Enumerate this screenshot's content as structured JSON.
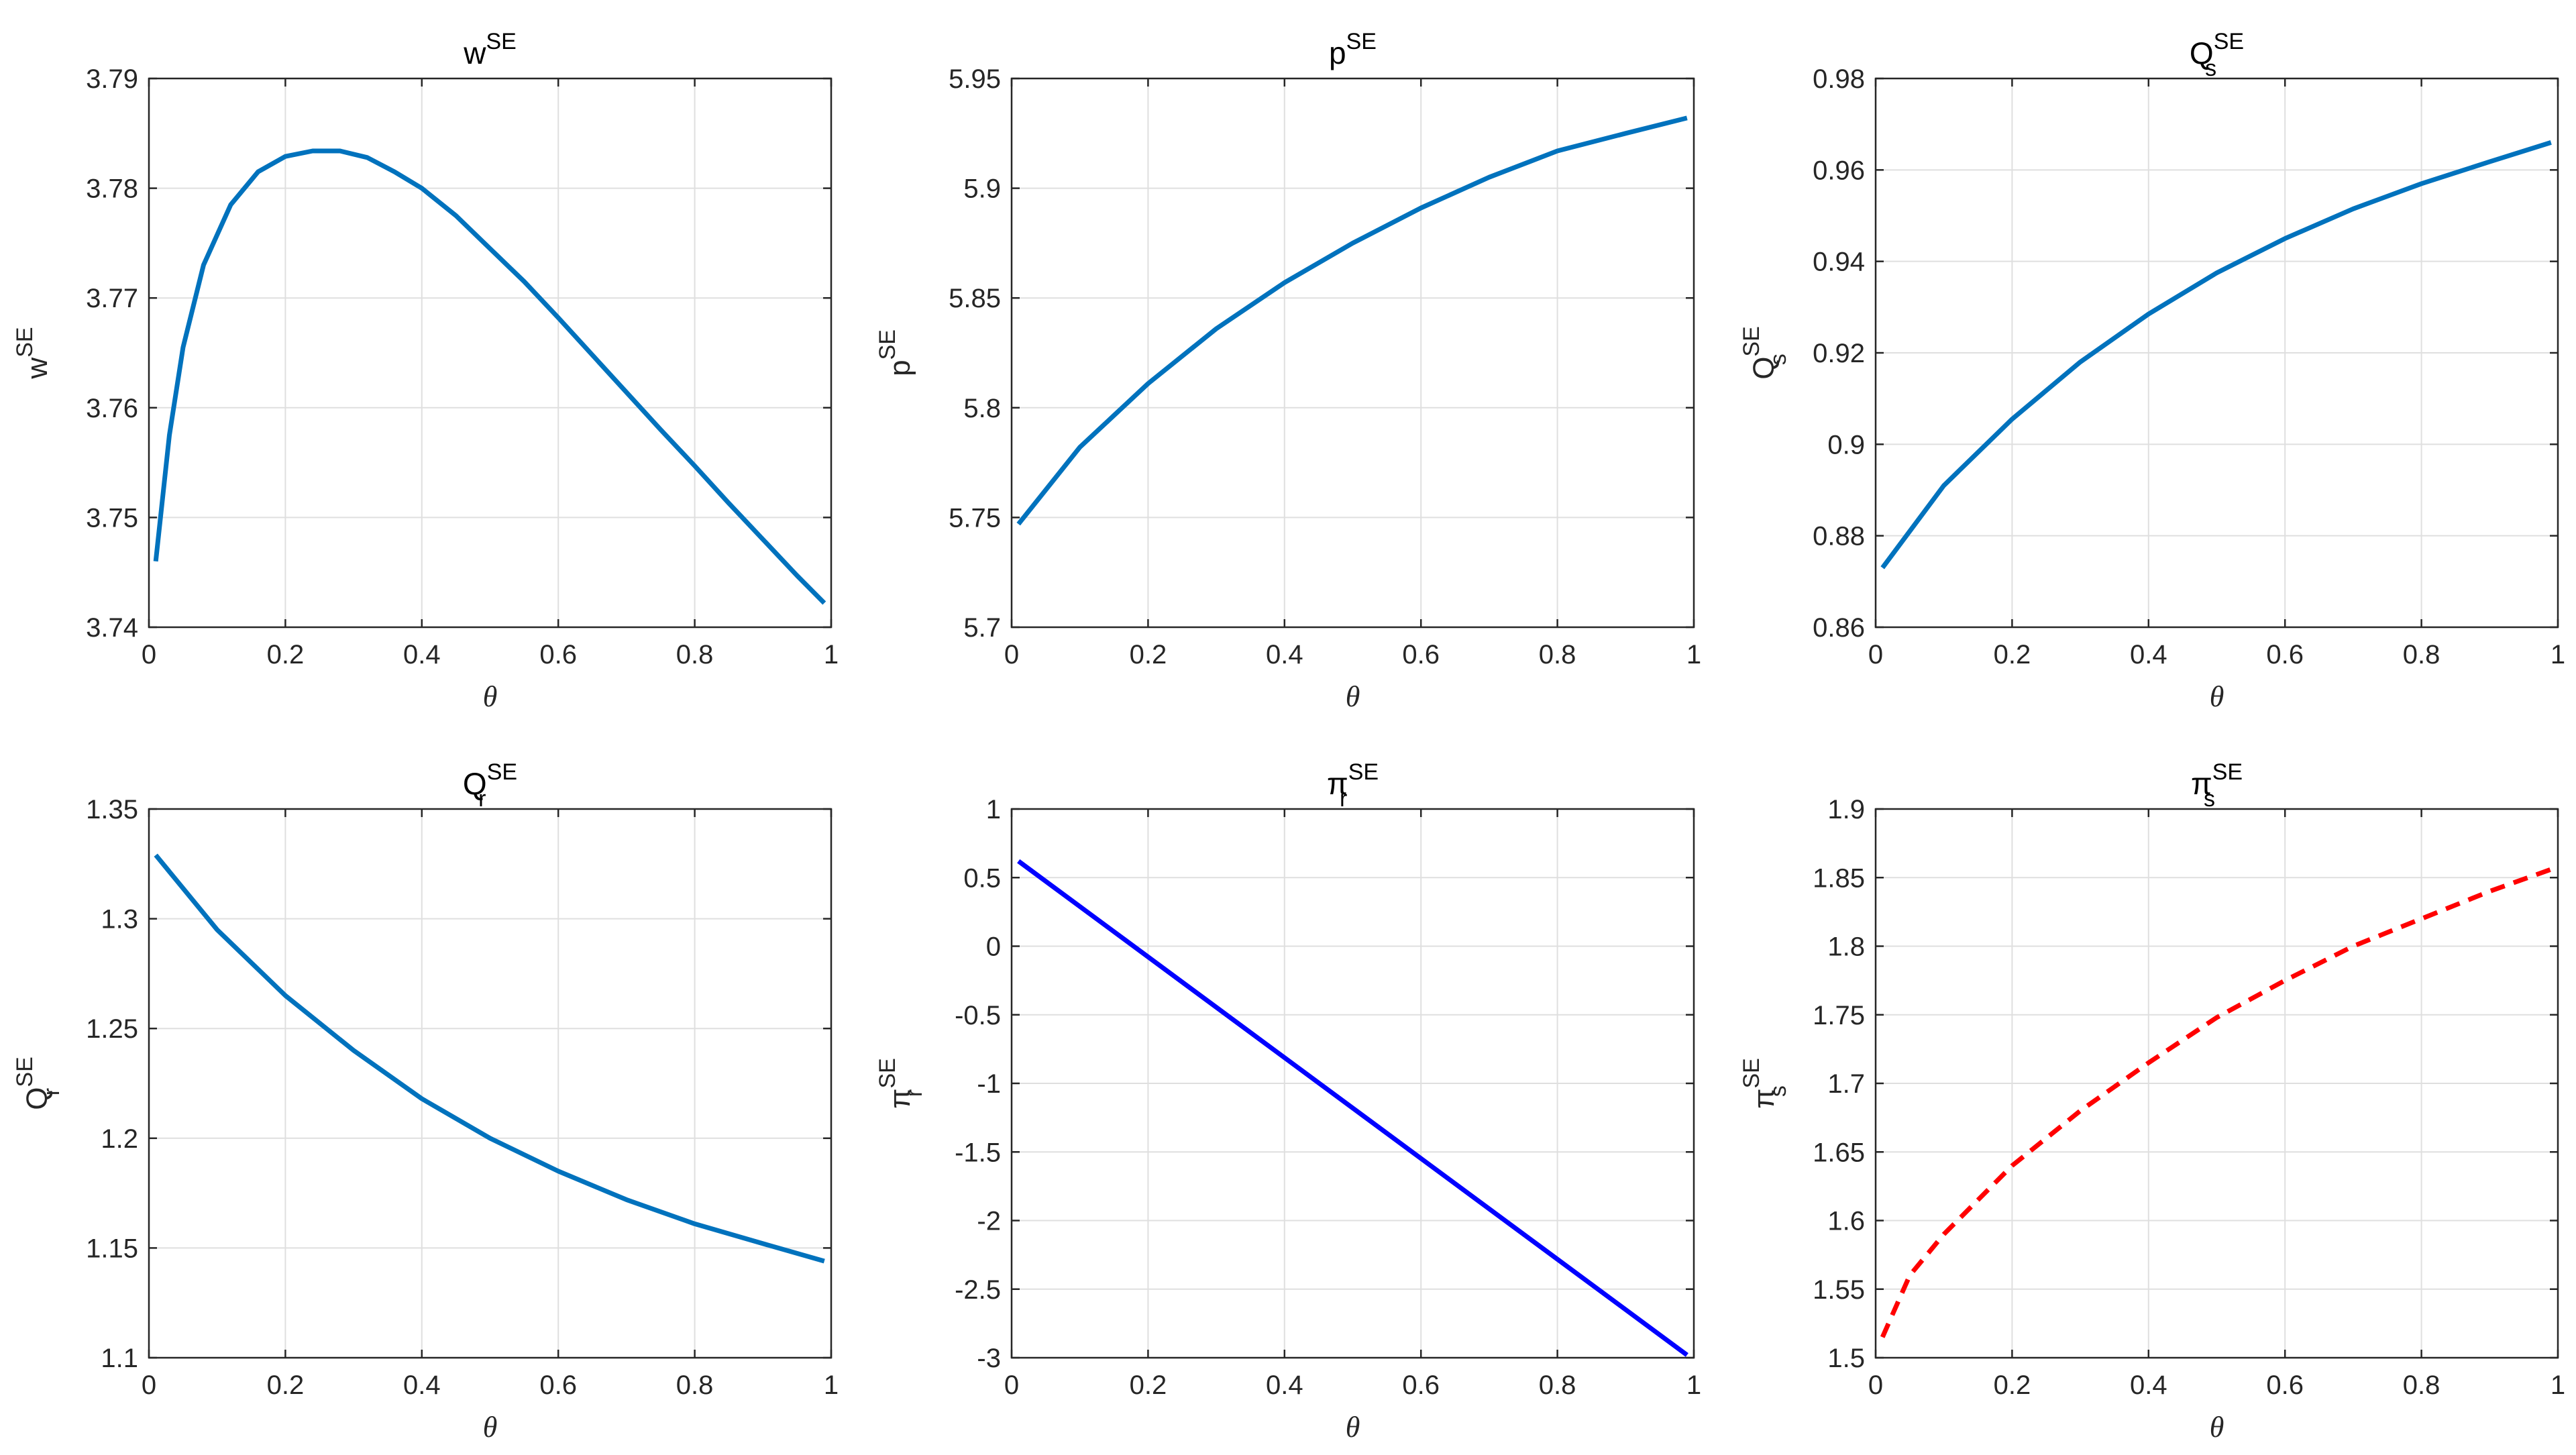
{
  "figure": {
    "background": "#ffffff",
    "grid_color": "#dfdfdf",
    "axis_color": "#262626"
  },
  "chart_data": [
    {
      "type": "line",
      "title": {
        "base": "w",
        "sup": "SE",
        "sub": ""
      },
      "ylabel": {
        "base": "w",
        "sup": "SE",
        "sub": ""
      },
      "xlabel": "θ",
      "xlim": [
        0,
        1
      ],
      "ylim": [
        3.74,
        3.79
      ],
      "xticks": [
        "0",
        "0.2",
        "0.4",
        "0.6",
        "0.8",
        "1"
      ],
      "yticks": [
        "3.74",
        "3.75",
        "3.76",
        "3.77",
        "3.78",
        "3.79"
      ],
      "grid": true,
      "series": [
        {
          "color": "#0072BD",
          "dash": false,
          "x": [
            0.01,
            0.03,
            0.05,
            0.08,
            0.12,
            0.16,
            0.2,
            0.24,
            0.28,
            0.32,
            0.36,
            0.4,
            0.45,
            0.5,
            0.55,
            0.6,
            0.65,
            0.7,
            0.75,
            0.8,
            0.85,
            0.9,
            0.95,
            0.99
          ],
          "y": [
            3.746,
            3.7575,
            3.7655,
            3.773,
            3.7785,
            3.7815,
            3.7829,
            3.7834,
            3.7834,
            3.7828,
            3.7815,
            3.78,
            3.7775,
            3.7745,
            3.7715,
            3.7682,
            3.7648,
            3.7614,
            3.758,
            3.7547,
            3.7513,
            3.748,
            3.7447,
            3.7422
          ]
        }
      ]
    },
    {
      "type": "line",
      "title": {
        "base": "p",
        "sup": "SE",
        "sub": ""
      },
      "ylabel": {
        "base": "p",
        "sup": "SE",
        "sub": ""
      },
      "xlabel": "θ",
      "xlim": [
        0,
        1
      ],
      "ylim": [
        5.7,
        5.95
      ],
      "xticks": [
        "0",
        "0.2",
        "0.4",
        "0.6",
        "0.8",
        "1"
      ],
      "yticks": [
        "5.7",
        "5.75",
        "5.8",
        "5.85",
        "5.9",
        "5.95"
      ],
      "grid": true,
      "series": [
        {
          "color": "#0072BD",
          "dash": false,
          "x": [
            0.01,
            0.1,
            0.2,
            0.3,
            0.4,
            0.5,
            0.6,
            0.7,
            0.8,
            0.9,
            0.99
          ],
          "y": [
            5.747,
            5.782,
            5.811,
            5.836,
            5.857,
            5.875,
            5.891,
            5.905,
            5.917,
            5.925,
            5.932
          ]
        }
      ]
    },
    {
      "type": "line",
      "title": {
        "base": "Q",
        "sup": "SE",
        "sub": "s"
      },
      "ylabel": {
        "base": "Q",
        "sup": "SE",
        "sub": "s"
      },
      "xlabel": "θ",
      "xlim": [
        0,
        1
      ],
      "ylim": [
        0.86,
        0.98
      ],
      "xticks": [
        "0",
        "0.2",
        "0.4",
        "0.6",
        "0.8",
        "1"
      ],
      "yticks": [
        "0.86",
        "0.88",
        "0.9",
        "0.92",
        "0.94",
        "0.96",
        "0.98"
      ],
      "grid": true,
      "series": [
        {
          "color": "#0072BD",
          "dash": false,
          "x": [
            0.01,
            0.1,
            0.2,
            0.3,
            0.4,
            0.5,
            0.6,
            0.7,
            0.8,
            0.9,
            0.99
          ],
          "y": [
            0.873,
            0.891,
            0.9055,
            0.918,
            0.9285,
            0.9375,
            0.945,
            0.9515,
            0.957,
            0.9618,
            0.966
          ]
        }
      ]
    },
    {
      "type": "line",
      "title": {
        "base": "Q",
        "sup": "SE",
        "sub": "r"
      },
      "ylabel": {
        "base": "Q",
        "sup": "SE",
        "sub": "r"
      },
      "xlabel": "θ",
      "xlim": [
        0,
        1
      ],
      "ylim": [
        1.1,
        1.35
      ],
      "xticks": [
        "0",
        "0.2",
        "0.4",
        "0.6",
        "0.8",
        "1"
      ],
      "yticks": [
        "1.1",
        "1.15",
        "1.2",
        "1.25",
        "1.3",
        "1.35"
      ],
      "grid": true,
      "series": [
        {
          "color": "#0072BD",
          "dash": false,
          "x": [
            0.01,
            0.1,
            0.2,
            0.3,
            0.4,
            0.5,
            0.6,
            0.7,
            0.8,
            0.9,
            0.99
          ],
          "y": [
            1.329,
            1.295,
            1.265,
            1.24,
            1.218,
            1.2,
            1.185,
            1.172,
            1.161,
            1.152,
            1.144
          ]
        }
      ]
    },
    {
      "type": "line",
      "title": {
        "base": "π",
        "sup": "SE",
        "sub": "r"
      },
      "ylabel": {
        "base": "π",
        "sup": "SE",
        "sub": "r"
      },
      "xlabel": "θ",
      "xlim": [
        0,
        1
      ],
      "ylim": [
        -3,
        1
      ],
      "xticks": [
        "0",
        "0.2",
        "0.4",
        "0.6",
        "0.8",
        "1"
      ],
      "yticks": [
        "-3",
        "-2.5",
        "-2",
        "-1.5",
        "-1",
        "-0.5",
        "0",
        "0.5",
        "1"
      ],
      "grid": true,
      "series": [
        {
          "color": "#0000FF",
          "dash": false,
          "x": [
            0.01,
            0.99
          ],
          "y": [
            0.62,
            -2.98
          ]
        }
      ]
    },
    {
      "type": "line",
      "title": {
        "base": "π",
        "sup": "SE",
        "sub": "s"
      },
      "ylabel": {
        "base": "π",
        "sup": "SE",
        "sub": "s"
      },
      "xlabel": "θ",
      "xlim": [
        0,
        1
      ],
      "ylim": [
        1.5,
        1.9
      ],
      "xticks": [
        "0",
        "0.2",
        "0.4",
        "0.6",
        "0.8",
        "1"
      ],
      "yticks": [
        "1.5",
        "1.55",
        "1.6",
        "1.65",
        "1.7",
        "1.75",
        "1.8",
        "1.85",
        "1.9"
      ],
      "grid": true,
      "series": [
        {
          "color": "#FF0000",
          "dash": true,
          "x": [
            0.01,
            0.05,
            0.1,
            0.2,
            0.3,
            0.4,
            0.5,
            0.6,
            0.7,
            0.8,
            0.9,
            0.99
          ],
          "y": [
            1.515,
            1.56,
            1.59,
            1.64,
            1.68,
            1.715,
            1.748,
            1.775,
            1.8,
            1.82,
            1.84,
            1.856
          ]
        }
      ]
    }
  ]
}
